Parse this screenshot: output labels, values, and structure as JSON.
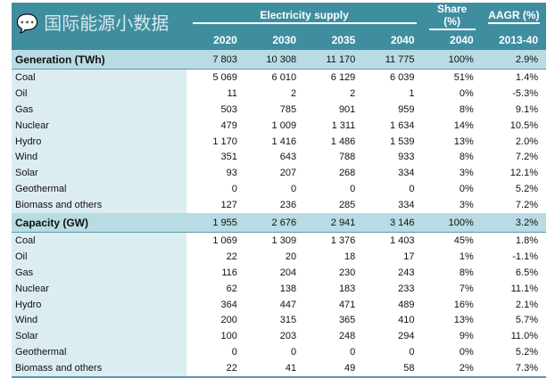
{
  "header": {
    "group_supply": "Electricity supply",
    "group_share": "Share (%)",
    "group_aagr": "AAGR (%)",
    "columns": [
      "2020",
      "2030",
      "2035",
      "2040",
      "2040",
      "2013-40"
    ]
  },
  "sections": [
    {
      "title": "Generation (TWh)",
      "total": [
        "7 803",
        "10 308",
        "11 170",
        "11 775",
        "100%",
        "2.9%"
      ],
      "rows": [
        {
          "label": "Coal",
          "values": [
            "5 069",
            "6 010",
            "6 129",
            "6 039",
            "51%",
            "1.4%"
          ]
        },
        {
          "label": "Oil",
          "values": [
            "11",
            "2",
            "2",
            "1",
            "0%",
            "-5.3%"
          ]
        },
        {
          "label": "Gas",
          "values": [
            "503",
            "785",
            "901",
            "959",
            "8%",
            "9.1%"
          ]
        },
        {
          "label": "Nuclear",
          "values": [
            "479",
            "1 009",
            "1 311",
            "1 634",
            "14%",
            "10.5%"
          ]
        },
        {
          "label": "Hydro",
          "values": [
            "1 170",
            "1 416",
            "1 486",
            "1 539",
            "13%",
            "2.0%"
          ]
        },
        {
          "label": "Wind",
          "values": [
            "351",
            "643",
            "788",
            "933",
            "8%",
            "7.2%"
          ]
        },
        {
          "label": "Solar",
          "values": [
            "93",
            "207",
            "268",
            "334",
            "3%",
            "12.1%"
          ]
        },
        {
          "label": "Geothermal",
          "values": [
            "0",
            "0",
            "0",
            "0",
            "0%",
            "5.2%"
          ]
        },
        {
          "label": "Biomass and others",
          "values": [
            "127",
            "236",
            "285",
            "334",
            "3%",
            "7.2%"
          ]
        }
      ]
    },
    {
      "title": "Capacity (GW)",
      "total": [
        "1 955",
        "2 676",
        "2 941",
        "3 146",
        "100%",
        "3.2%"
      ],
      "rows": [
        {
          "label": "Coal",
          "values": [
            "1 069",
            "1 309",
            "1 376",
            "1 403",
            "45%",
            "1.8%"
          ]
        },
        {
          "label": "Oil",
          "values": [
            "22",
            "20",
            "18",
            "17",
            "1%",
            "-1.1%"
          ]
        },
        {
          "label": "Gas",
          "values": [
            "116",
            "204",
            "230",
            "243",
            "8%",
            "6.5%"
          ]
        },
        {
          "label": "Nuclear",
          "values": [
            "62",
            "138",
            "183",
            "233",
            "7%",
            "11.1%"
          ]
        },
        {
          "label": "Hydro",
          "values": [
            "364",
            "447",
            "471",
            "489",
            "16%",
            "2.1%"
          ]
        },
        {
          "label": "Wind",
          "values": [
            "200",
            "315",
            "365",
            "410",
            "13%",
            "5.7%"
          ]
        },
        {
          "label": "Solar",
          "values": [
            "100",
            "203",
            "248",
            "294",
            "9%",
            "11.0%"
          ]
        },
        {
          "label": "Geothermal",
          "values": [
            "0",
            "0",
            "0",
            "0",
            "0%",
            "5.2%"
          ]
        },
        {
          "label": "Biomass and others",
          "values": [
            "22",
            "41",
            "49",
            "58",
            "2%",
            "7.3%"
          ]
        }
      ]
    }
  ],
  "watermark": "国际能源小数据"
}
